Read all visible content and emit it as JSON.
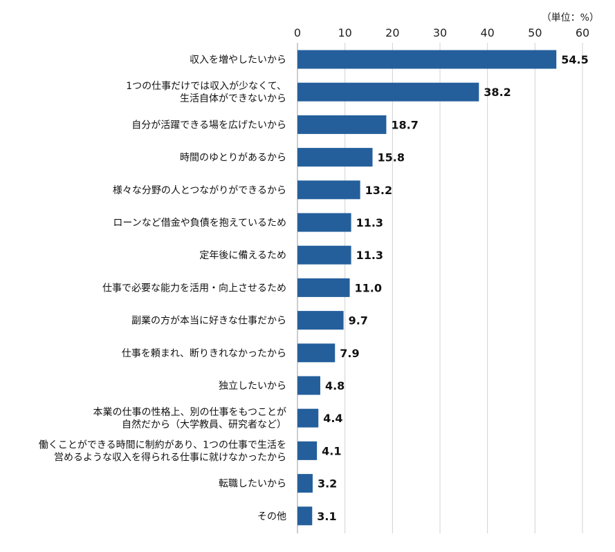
{
  "chart_data": {
    "type": "bar",
    "orientation": "horizontal",
    "unit_label": "（単位：%）",
    "xlim": [
      0,
      60
    ],
    "ticks": [
      0,
      10,
      20,
      30,
      40,
      50,
      60
    ],
    "grid": true,
    "bar_color": "#245f9c",
    "categories": [
      [
        "収入を増やしたいから"
      ],
      [
        "1つの仕事だけでは収入が少なくて、",
        "生活自体ができないから"
      ],
      [
        "自分が活躍できる場を広げたいから"
      ],
      [
        "時間のゆとりがあるから"
      ],
      [
        "様々な分野の人とつながりができるから"
      ],
      [
        "ローンなど借金や負債を抱えているため"
      ],
      [
        "定年後に備えるため"
      ],
      [
        "仕事で必要な能力を活用・向上させるため"
      ],
      [
        "副業の方が本当に好きな仕事だから"
      ],
      [
        "仕事を頼まれ、断りきれなかったから"
      ],
      [
        "独立したいから"
      ],
      [
        "本業の仕事の性格上、別の仕事をもつことが",
        "自然だから（大学教員、研究者など）"
      ],
      [
        "働くことができる時間に制約があり、1つの仕事で生活を",
        "営めるような収入を得られる仕事に就けなかったから"
      ],
      [
        "転職したいから"
      ],
      [
        "その他"
      ]
    ],
    "values": [
      54.5,
      38.2,
      18.7,
      15.8,
      13.2,
      11.3,
      11.3,
      11.0,
      9.7,
      7.9,
      4.8,
      4.4,
      4.1,
      3.2,
      3.1
    ],
    "value_labels": [
      "54.5",
      "38.2",
      "18.7",
      "15.8",
      "13.2",
      "11.3",
      "11.3",
      "11.0",
      "9.7",
      "7.9",
      "4.8",
      "4.4",
      "4.1",
      "3.2",
      "3.1"
    ]
  }
}
